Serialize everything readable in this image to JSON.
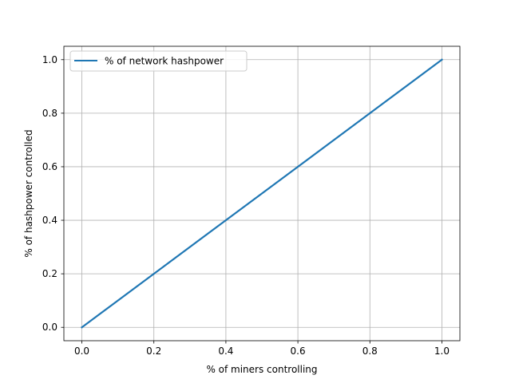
{
  "chart_data": {
    "type": "line",
    "title": "",
    "xlabel": "% of miners controlling",
    "ylabel": "% of hashpower controlled",
    "xlim": [
      -0.05,
      1.05
    ],
    "ylim": [
      -0.05,
      1.05
    ],
    "xticks": [
      0.0,
      0.2,
      0.4,
      0.6,
      0.8,
      1.0
    ],
    "yticks": [
      0.0,
      0.2,
      0.4,
      0.6,
      0.8,
      1.0
    ],
    "xtick_labels": [
      "0.0",
      "0.2",
      "0.4",
      "0.6",
      "0.8",
      "1.0"
    ],
    "ytick_labels": [
      "0.0",
      "0.2",
      "0.4",
      "0.6",
      "0.8",
      "1.0"
    ],
    "grid": true,
    "legend_position": "top-left",
    "series": [
      {
        "name": "% of network hashpower",
        "color": "#1f77b4",
        "x": [
          0.0,
          0.2,
          0.4,
          0.6,
          0.8,
          1.0
        ],
        "y": [
          0.0,
          0.2,
          0.4,
          0.6,
          0.8,
          1.0
        ]
      }
    ]
  }
}
